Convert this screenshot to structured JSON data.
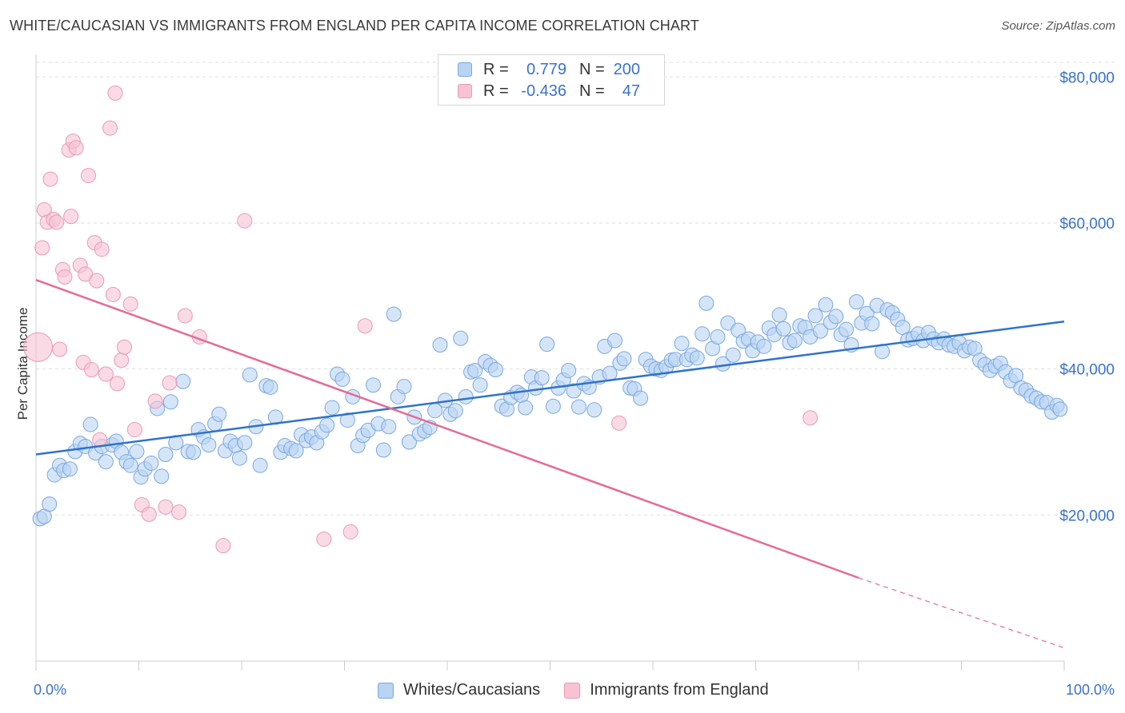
{
  "header": {
    "title": "WHITE/CAUCASIAN VS IMMIGRANTS FROM ENGLAND PER CAPITA INCOME CORRELATION CHART",
    "source": "Source: ZipAtlas.com"
  },
  "legend_top": {
    "rows": [
      {
        "r_label": "R =",
        "r_value": "0.779",
        "n_label": "N =",
        "n_value": "200"
      },
      {
        "r_label": "R =",
        "r_value": "-0.436",
        "n_label": "N =",
        "n_value": "47"
      }
    ]
  },
  "legend_bottom": {
    "items": [
      "Whites/Caucasians",
      "Immigrants from England"
    ]
  },
  "colors": {
    "blue_fill": "#b9d3f3",
    "blue_stroke": "#7aa7df",
    "blue_line": "#2f73c9",
    "pink_fill": "#f7c3d3",
    "pink_stroke": "#eb98b5",
    "pink_line": "#e56a96",
    "axis_text": "#3a72c8",
    "grid": "#dddddd"
  },
  "chart_data": {
    "type": "scatter",
    "title": "WHITE/CAUCASIAN VS IMMIGRANTS FROM ENGLAND PER CAPITA INCOME CORRELATION CHART",
    "xlabel": "",
    "ylabel": "Per Capita Income",
    "xlim": [
      0,
      100
    ],
    "ylim": [
      0,
      82000
    ],
    "x_tick_labels": [
      "0.0%",
      "100.0%"
    ],
    "y_ticks": [
      20000,
      40000,
      60000,
      80000
    ],
    "y_tick_labels": [
      "$20,000",
      "$40,000",
      "$60,000",
      "$80,000"
    ],
    "grid": true,
    "legend_placement": "top-center",
    "series": [
      {
        "name": "Whites/Caucasians",
        "trend": {
          "x": [
            0,
            100
          ],
          "y": [
            28300,
            46500
          ]
        },
        "points": [
          [
            0.4,
            19500
          ],
          [
            0.8,
            19800
          ],
          [
            1.3,
            21500
          ],
          [
            1.8,
            25500
          ],
          [
            2.3,
            26800
          ],
          [
            2.7,
            26100
          ],
          [
            3.3,
            26300
          ],
          [
            3.8,
            28700
          ],
          [
            4.3,
            29800
          ],
          [
            4.8,
            29400
          ],
          [
            5.3,
            32400
          ],
          [
            5.8,
            28500
          ],
          [
            6.4,
            29400
          ],
          [
            6.8,
            27300
          ],
          [
            7.4,
            29600
          ],
          [
            7.8,
            30100
          ],
          [
            8.3,
            28600
          ],
          [
            8.8,
            27300
          ],
          [
            9.2,
            26800
          ],
          [
            9.8,
            28700
          ],
          [
            10.2,
            25200
          ],
          [
            10.6,
            26300
          ],
          [
            11.2,
            27100
          ],
          [
            11.8,
            34600
          ],
          [
            12.2,
            25300
          ],
          [
            12.6,
            28300
          ],
          [
            13.1,
            35500
          ],
          [
            13.6,
            29900
          ],
          [
            14.3,
            38300
          ],
          [
            14.8,
            28700
          ],
          [
            15.3,
            28600
          ],
          [
            15.8,
            31700
          ],
          [
            16.3,
            30700
          ],
          [
            16.8,
            29600
          ],
          [
            17.4,
            32500
          ],
          [
            17.8,
            33800
          ],
          [
            18.4,
            28800
          ],
          [
            18.9,
            30100
          ],
          [
            19.4,
            29500
          ],
          [
            19.8,
            27800
          ],
          [
            20.3,
            29900
          ],
          [
            20.8,
            39200
          ],
          [
            21.4,
            32100
          ],
          [
            21.8,
            26800
          ],
          [
            22.4,
            37700
          ],
          [
            22.8,
            37500
          ],
          [
            23.3,
            33400
          ],
          [
            23.8,
            28600
          ],
          [
            24.2,
            29500
          ],
          [
            24.8,
            29100
          ],
          [
            25.3,
            28800
          ],
          [
            25.8,
            31000
          ],
          [
            26.3,
            30200
          ],
          [
            26.8,
            30700
          ],
          [
            27.3,
            29900
          ],
          [
            27.8,
            31400
          ],
          [
            28.3,
            32300
          ],
          [
            28.8,
            34700
          ],
          [
            29.3,
            39300
          ],
          [
            29.8,
            38600
          ],
          [
            30.3,
            33000
          ],
          [
            30.8,
            36200
          ],
          [
            31.3,
            29500
          ],
          [
            31.8,
            30900
          ],
          [
            32.3,
            31600
          ],
          [
            32.8,
            37800
          ],
          [
            33.3,
            32500
          ],
          [
            33.8,
            28900
          ],
          [
            34.3,
            32100
          ],
          [
            34.8,
            47500
          ],
          [
            35.2,
            36200
          ],
          [
            35.8,
            37600
          ],
          [
            36.3,
            30000
          ],
          [
            36.8,
            33400
          ],
          [
            37.3,
            31100
          ],
          [
            37.8,
            31500
          ],
          [
            38.3,
            32000
          ],
          [
            38.8,
            34300
          ],
          [
            39.3,
            43300
          ],
          [
            39.8,
            35700
          ],
          [
            40.3,
            33800
          ],
          [
            40.8,
            34300
          ],
          [
            41.3,
            44200
          ],
          [
            41.8,
            36200
          ],
          [
            42.3,
            39600
          ],
          [
            42.7,
            39800
          ],
          [
            43.2,
            37800
          ],
          [
            43.7,
            41000
          ],
          [
            44.2,
            40500
          ],
          [
            44.7,
            39900
          ],
          [
            45.3,
            34900
          ],
          [
            45.8,
            34500
          ],
          [
            46.2,
            36100
          ],
          [
            46.8,
            36800
          ],
          [
            47.2,
            36400
          ],
          [
            47.6,
            34700
          ],
          [
            48.2,
            38900
          ],
          [
            48.6,
            37400
          ],
          [
            49.2,
            38800
          ],
          [
            49.7,
            43400
          ],
          [
            50.3,
            34900
          ],
          [
            50.8,
            37400
          ],
          [
            51.3,
            38500
          ],
          [
            51.8,
            39800
          ],
          [
            52.3,
            37000
          ],
          [
            52.8,
            34800
          ],
          [
            53.3,
            38000
          ],
          [
            53.8,
            37500
          ],
          [
            54.3,
            34400
          ],
          [
            54.8,
            38900
          ],
          [
            55.3,
            43100
          ],
          [
            55.8,
            39400
          ],
          [
            56.3,
            43900
          ],
          [
            56.8,
            40800
          ],
          [
            57.2,
            41400
          ],
          [
            57.8,
            37400
          ],
          [
            58.2,
            37300
          ],
          [
            58.8,
            36000
          ],
          [
            59.3,
            41300
          ],
          [
            59.8,
            40400
          ],
          [
            60.3,
            40000
          ],
          [
            60.8,
            39800
          ],
          [
            61.3,
            40300
          ],
          [
            61.8,
            41200
          ],
          [
            62.2,
            41300
          ],
          [
            62.8,
            43500
          ],
          [
            63.3,
            41300
          ],
          [
            63.8,
            41900
          ],
          [
            64.3,
            41500
          ],
          [
            64.8,
            44800
          ],
          [
            65.2,
            49000
          ],
          [
            65.8,
            42800
          ],
          [
            66.3,
            44400
          ],
          [
            66.8,
            40700
          ],
          [
            67.3,
            46300
          ],
          [
            67.8,
            41900
          ],
          [
            68.3,
            45300
          ],
          [
            68.8,
            43800
          ],
          [
            69.3,
            44100
          ],
          [
            69.7,
            42500
          ],
          [
            70.2,
            43700
          ],
          [
            70.8,
            43100
          ],
          [
            71.3,
            45600
          ],
          [
            71.8,
            44700
          ],
          [
            72.3,
            47400
          ],
          [
            72.7,
            45500
          ],
          [
            73.3,
            43600
          ],
          [
            73.8,
            43900
          ],
          [
            74.3,
            45900
          ],
          [
            74.8,
            45700
          ],
          [
            75.3,
            44400
          ],
          [
            75.8,
            47300
          ],
          [
            76.3,
            45200
          ],
          [
            76.8,
            48800
          ],
          [
            77.3,
            46400
          ],
          [
            77.8,
            47200
          ],
          [
            78.3,
            44700
          ],
          [
            78.8,
            45400
          ],
          [
            79.3,
            43300
          ],
          [
            79.8,
            49200
          ],
          [
            80.3,
            46300
          ],
          [
            80.8,
            47600
          ],
          [
            81.3,
            46200
          ],
          [
            81.8,
            48700
          ],
          [
            82.3,
            42400
          ],
          [
            82.8,
            48100
          ],
          [
            83.3,
            47700
          ],
          [
            83.8,
            46800
          ],
          [
            84.3,
            45700
          ],
          [
            84.8,
            44000
          ],
          [
            85.3,
            44200
          ],
          [
            85.8,
            44800
          ],
          [
            86.3,
            43900
          ],
          [
            86.8,
            45000
          ],
          [
            87.3,
            44100
          ],
          [
            87.8,
            43600
          ],
          [
            88.3,
            44100
          ],
          [
            88.8,
            43300
          ],
          [
            89.3,
            43100
          ],
          [
            89.8,
            43600
          ],
          [
            90.3,
            42500
          ],
          [
            90.8,
            43000
          ],
          [
            91.3,
            42800
          ],
          [
            91.8,
            41200
          ],
          [
            92.3,
            40600
          ],
          [
            92.8,
            39800
          ],
          [
            93.3,
            40400
          ],
          [
            93.8,
            40800
          ],
          [
            94.3,
            39600
          ],
          [
            94.8,
            38400
          ],
          [
            95.3,
            39100
          ],
          [
            95.8,
            37400
          ],
          [
            96.3,
            37100
          ],
          [
            96.8,
            36300
          ],
          [
            97.3,
            36000
          ],
          [
            97.8,
            35500
          ],
          [
            98.3,
            35400
          ],
          [
            98.8,
            34100
          ],
          [
            99.3,
            35000
          ],
          [
            99.6,
            34500
          ]
        ]
      },
      {
        "name": "Immigrants from England",
        "trend": {
          "x": [
            0,
            80
          ],
          "y": [
            52200,
            11400
          ]
        },
        "trend_dashed": {
          "x": [
            80,
            100
          ],
          "y": [
            11400,
            1800
          ]
        },
        "points": [
          [
            0.2,
            43000
          ],
          [
            0.6,
            56600
          ],
          [
            0.8,
            61800
          ],
          [
            1.1,
            60100
          ],
          [
            1.4,
            66000
          ],
          [
            1.7,
            60500
          ],
          [
            2.0,
            60100
          ],
          [
            2.3,
            42700
          ],
          [
            2.6,
            53600
          ],
          [
            2.8,
            52600
          ],
          [
            3.2,
            70000
          ],
          [
            3.4,
            60900
          ],
          [
            3.6,
            71200
          ],
          [
            3.9,
            70300
          ],
          [
            4.3,
            54200
          ],
          [
            4.6,
            40900
          ],
          [
            4.8,
            53000
          ],
          [
            5.1,
            66500
          ],
          [
            5.4,
            39900
          ],
          [
            5.7,
            57300
          ],
          [
            5.9,
            52100
          ],
          [
            6.2,
            30300
          ],
          [
            6.4,
            56400
          ],
          [
            6.8,
            39300
          ],
          [
            7.2,
            73000
          ],
          [
            7.5,
            50200
          ],
          [
            7.7,
            77800
          ],
          [
            7.9,
            38000
          ],
          [
            8.3,
            41200
          ],
          [
            8.6,
            43000
          ],
          [
            9.2,
            48900
          ],
          [
            9.6,
            31700
          ],
          [
            10.3,
            21400
          ],
          [
            11.0,
            20100
          ],
          [
            11.6,
            35600
          ],
          [
            12.6,
            21100
          ],
          [
            13.0,
            38100
          ],
          [
            13.9,
            20400
          ],
          [
            14.5,
            47300
          ],
          [
            15.9,
            44400
          ],
          [
            18.2,
            15800
          ],
          [
            20.3,
            60300
          ],
          [
            28.0,
            16700
          ],
          [
            30.6,
            17700
          ],
          [
            32.0,
            45900
          ],
          [
            56.7,
            32600
          ],
          [
            75.3,
            33300
          ]
        ]
      }
    ]
  }
}
